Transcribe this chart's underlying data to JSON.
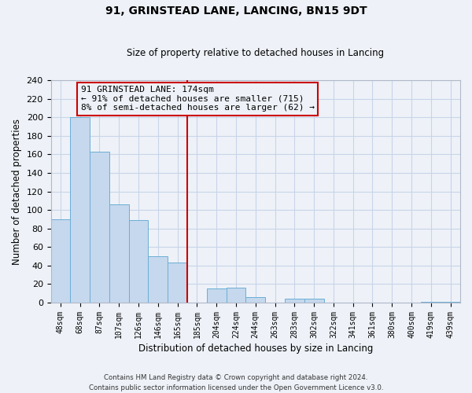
{
  "title": "91, GRINSTEAD LANE, LANCING, BN15 9DT",
  "subtitle": "Size of property relative to detached houses in Lancing",
  "xlabel": "Distribution of detached houses by size in Lancing",
  "ylabel": "Number of detached properties",
  "bin_labels": [
    "48sqm",
    "68sqm",
    "87sqm",
    "107sqm",
    "126sqm",
    "146sqm",
    "165sqm",
    "185sqm",
    "204sqm",
    "224sqm",
    "244sqm",
    "263sqm",
    "283sqm",
    "302sqm",
    "322sqm",
    "341sqm",
    "361sqm",
    "380sqm",
    "400sqm",
    "419sqm",
    "439sqm"
  ],
  "bar_heights": [
    90,
    200,
    163,
    106,
    89,
    50,
    43,
    0,
    15,
    16,
    6,
    0,
    4,
    4,
    0,
    0,
    0,
    0,
    0,
    1,
    1
  ],
  "bar_color": "#c5d8ed",
  "bar_edge_color": "#6baed6",
  "highlight_line_color": "#cc0000",
  "ylim": [
    0,
    240
  ],
  "yticks": [
    0,
    20,
    40,
    60,
    80,
    100,
    120,
    140,
    160,
    180,
    200,
    220,
    240
  ],
  "annotation_line1": "91 GRINSTEAD LANE: 174sqm",
  "annotation_line2": "← 91% of detached houses are smaller (715)",
  "annotation_line3": "8% of semi-detached houses are larger (62) →",
  "annotation_box_edge_color": "#cc0000",
  "footer_line1": "Contains HM Land Registry data © Crown copyright and database right 2024.",
  "footer_line2": "Contains public sector information licensed under the Open Government Licence v3.0.",
  "grid_color": "#c8d4e8",
  "background_color": "#eef2f8",
  "spine_color": "#b0b8c8"
}
